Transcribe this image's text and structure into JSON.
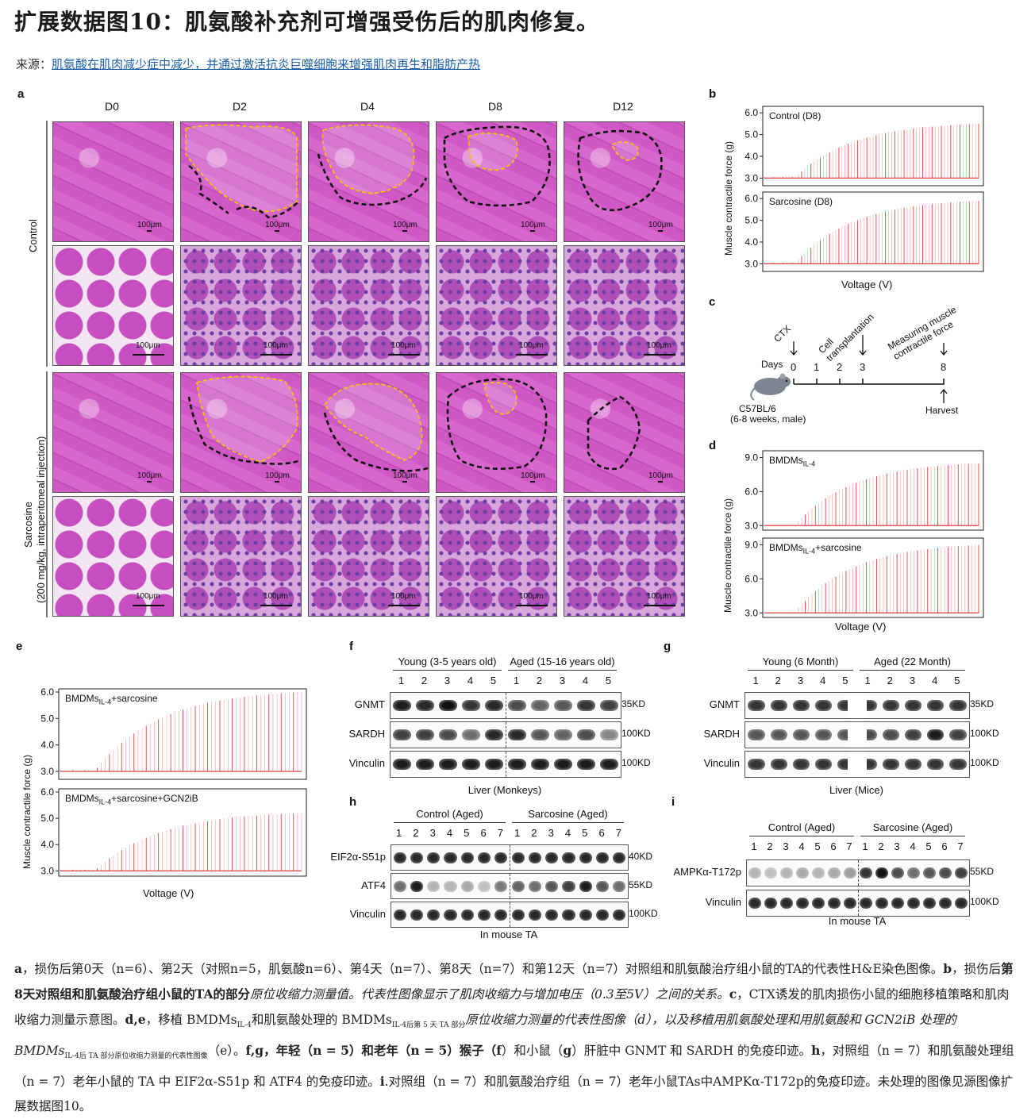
{
  "title": "扩展数据图10：肌氨酸补充剂可增强受伤后的肌肉修复。",
  "source": {
    "label": "来源：",
    "link_text": "肌氨酸在肌肉减少症中减少，并通过激活抗炎巨噬细胞来增强肌肉再生和脂肪产热"
  },
  "panel_a": {
    "letter": "a",
    "columns": [
      "D0",
      "D2",
      "D4",
      "D8",
      "D12"
    ],
    "row_labels": [
      "Control",
      "Sarcosine",
      "(200 mg/kg, intraperitoneal injection)"
    ],
    "scale": "100μm"
  },
  "panel_b": {
    "letter": "b",
    "traces": [
      {
        "name": "Control (D8)",
        "yticks": [
          "6.0",
          "5.0",
          "4.0",
          "3.0"
        ],
        "baseline": 3.0,
        "peak": 5.5
      },
      {
        "name": "Sarcosine (D8)",
        "yticks": [
          "6.0",
          "5.0",
          "4.0",
          "3.0"
        ],
        "baseline": 3.0,
        "peak": 5.9
      }
    ],
    "ylabel": "Muscle contractile force (g)",
    "xlabel": "Voltage (V)"
  },
  "panel_c": {
    "letter": "c",
    "days_label": "Days",
    "ticks": [
      "0",
      "1",
      "2",
      "3",
      "8"
    ],
    "events": [
      "CTX",
      "Cell transplantation",
      "Measuring muscle contractile force",
      "Harvest"
    ],
    "mouse_label": "C57BL/6",
    "mouse_sub": "(6-8 weeks, male)"
  },
  "panel_d": {
    "letter": "d",
    "traces": [
      {
        "name": "BMDMs",
        "sub": "IL-4",
        "suffix": "",
        "yticks": [
          "9.0",
          "6.0",
          "3.0"
        ],
        "baseline": 3.0,
        "peak": 8.5
      },
      {
        "name": "BMDMs",
        "sub": "IL-4",
        "suffix": "+sarcosine",
        "yticks": [
          "9.0",
          "6.0",
          "3.0"
        ],
        "baseline": 3.0,
        "peak": 9.0
      }
    ],
    "ylabel": "Muscle contractile force (g)",
    "xlabel": "Voltage (V)"
  },
  "panel_e": {
    "letter": "e",
    "traces": [
      {
        "name": "BMDMs",
        "sub": "IL-4",
        "suffix": "+sarcosine",
        "yticks": [
          "6.0",
          "5.0",
          "4.0",
          "3.0"
        ],
        "baseline": 3.0,
        "peak": 6.0
      },
      {
        "name": "BMDMs",
        "sub": "IL-4",
        "suffix": "+sarcosine+GCN2iB",
        "yticks": [
          "6.0",
          "5.0",
          "4.0",
          "3.0"
        ],
        "baseline": 3.0,
        "peak": 5.2
      }
    ],
    "ylabel": "Muscle contractile force (g)",
    "xlabel": "Voltage (V)"
  },
  "panel_f": {
    "letter": "f",
    "groups": [
      "Young (3-5 years old)",
      "Aged (15-16 years old)"
    ],
    "lanes": [
      "1",
      "2",
      "3",
      "4",
      "5"
    ],
    "rows": [
      {
        "name": "GNMT",
        "kd": "35KD"
      },
      {
        "name": "SARDH",
        "kd": "100KD"
      },
      {
        "name": "Vinculin",
        "kd": "100KD"
      }
    ],
    "footer": "Liver (Monkeys)"
  },
  "panel_g": {
    "letter": "g",
    "groups": [
      "Young (6 Month)",
      "Aged (22 Month)"
    ],
    "lanes": [
      "1",
      "2",
      "3",
      "4",
      "5"
    ],
    "rows": [
      {
        "name": "GNMT",
        "kd": "35KD"
      },
      {
        "name": "SARDH",
        "kd": "100KD"
      },
      {
        "name": "Vinculin",
        "kd": "100KD"
      }
    ],
    "footer": "Liver (Mice)"
  },
  "panel_h": {
    "letter": "h",
    "groups": [
      "Control (Aged)",
      "Sarcosine (Aged)"
    ],
    "lanes": [
      "1",
      "2",
      "3",
      "4",
      "5",
      "6",
      "7"
    ],
    "rows": [
      {
        "name": "EIF2α-S51p",
        "kd": "40KD"
      },
      {
        "name": "ATF4",
        "kd": "55KD"
      },
      {
        "name": "Vinculin",
        "kd": "100KD"
      }
    ],
    "footer": "In mouse TA"
  },
  "panel_i": {
    "letter": "i",
    "groups": [
      "Control (Aged)",
      "Sarcosine (Aged)"
    ],
    "lanes": [
      "1",
      "2",
      "3",
      "4",
      "5",
      "6",
      "7"
    ],
    "rows": [
      {
        "name": "AMPKα-T172p",
        "kd": "55KD"
      },
      {
        "name": "Vinculin",
        "kd": "100KD"
      }
    ],
    "footer": "In mouse TA"
  },
  "caption": {
    "p1_a": "a",
    "p1": "，损伤后第0天（n=6）、第2天（对照n=5，肌氨酸n=6）、第4天（n=7）、第8天（n=7）和第12天（n=7）对照组和肌氨酸治疗组小鼠的TA的代表性H&E染色图像。",
    "p2_b": "b",
    "p2": "，损伤后",
    "p2_bold": "第8天对照组和肌氨酸治疗组小鼠的TA的部分",
    "p2_rest": "原位收缩力测量值。代表性图像显示了肌肉收缩力与增加电压（0.3至5V）之间的关系。",
    "p3_c": "c",
    "p3": "，CTX诱发的肌肉损伤小鼠的细胞移植策略和肌肉收缩力测量示意图。",
    "p4_de": "d,e",
    "p4": "，移植 BMDMs",
    "p4_sub1": "IL-4",
    "p4_mid": "和肌氨酸处理的 BMDMs",
    "p4_sub2": "IL-4后第 5 天 TA 部分",
    "p4_rest": "原位收缩力测量的代表性图像（d），以及移植用肌氨酸处理和用肌氨酸和 GCN2iB 处理的BMDMs",
    "p4_sub3": "IL-4后 TA 部分原位收缩力测量的代表性图像",
    "p4_end": "（e）。",
    "p5_fg": "f,g",
    "p5_bold": "，年轻（n = 5）和老年（n = 5）猴子（",
    "p5_f": "f",
    "p5": "）和小鼠（",
    "p5_g": "g",
    "p5_rest": "）肝脏中 GNMT 和 SARDH 的免疫印迹。",
    "p6_h": "h",
    "p6": "，对照组（n = 7）和肌氨酸处理组（n = 7）老年小鼠的 TA 中 EIF2α-S51p 和 ATF4 的免疫印迹。",
    "p7_i": "i",
    "p7": ".对照组（n = 7）和肌氨酸治疗组（n = 7）老年小鼠TAs中AMPKα-T172p的免疫印迹。未处理的图像见源图像扩展数据图10。"
  },
  "colors": {
    "trace": "#e0413f",
    "he_pink": "#c852bf",
    "link": "#1d5ea8",
    "outline_yellow": "#f2c20a"
  }
}
